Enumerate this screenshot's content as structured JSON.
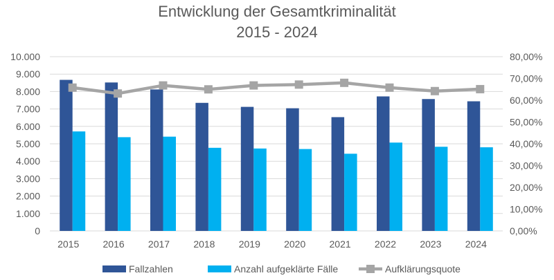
{
  "chart_data": {
    "type": "bar",
    "title": "Entwicklung der Gesamtkriminalität",
    "subtitle": "2015 - 2024",
    "categories": [
      "2015",
      "2016",
      "2017",
      "2018",
      "2019",
      "2020",
      "2021",
      "2022",
      "2023",
      "2024"
    ],
    "series": [
      {
        "name": "Fallzahlen",
        "type": "bar",
        "axis": "left",
        "color": "#2F5597",
        "values": [
          8670,
          8520,
          8120,
          7350,
          7120,
          7040,
          6530,
          7720,
          7570,
          7440
        ]
      },
      {
        "name": "Anzahl aufgeklärte Fälle",
        "type": "bar",
        "axis": "left",
        "color": "#00B0F0",
        "values": [
          5710,
          5380,
          5410,
          4770,
          4730,
          4700,
          4430,
          5070,
          4830,
          4800
        ]
      },
      {
        "name": "Aufklärungsquote",
        "type": "line",
        "axis": "right",
        "color": "#A5A5A5",
        "marker": "square",
        "values": [
          65.8,
          63.1,
          66.8,
          65.0,
          66.8,
          67.2,
          68.0,
          65.8,
          64.2,
          65.1
        ]
      }
    ],
    "y_left": {
      "min": 0,
      "max": 10000,
      "ticks": [
        "0",
        "1.000",
        "2.000",
        "3.000",
        "4.000",
        "5.000",
        "6.000",
        "7.000",
        "8.000",
        "9.000",
        "10.000"
      ]
    },
    "y_right": {
      "min": 0,
      "max": 80,
      "unit": "%",
      "ticks": [
        "0,00%",
        "10,00%",
        "20,00%",
        "30,00%",
        "40,00%",
        "50,00%",
        "60,00%",
        "70,00%",
        "80,00%"
      ]
    },
    "grid": true,
    "legend": "bottom"
  }
}
